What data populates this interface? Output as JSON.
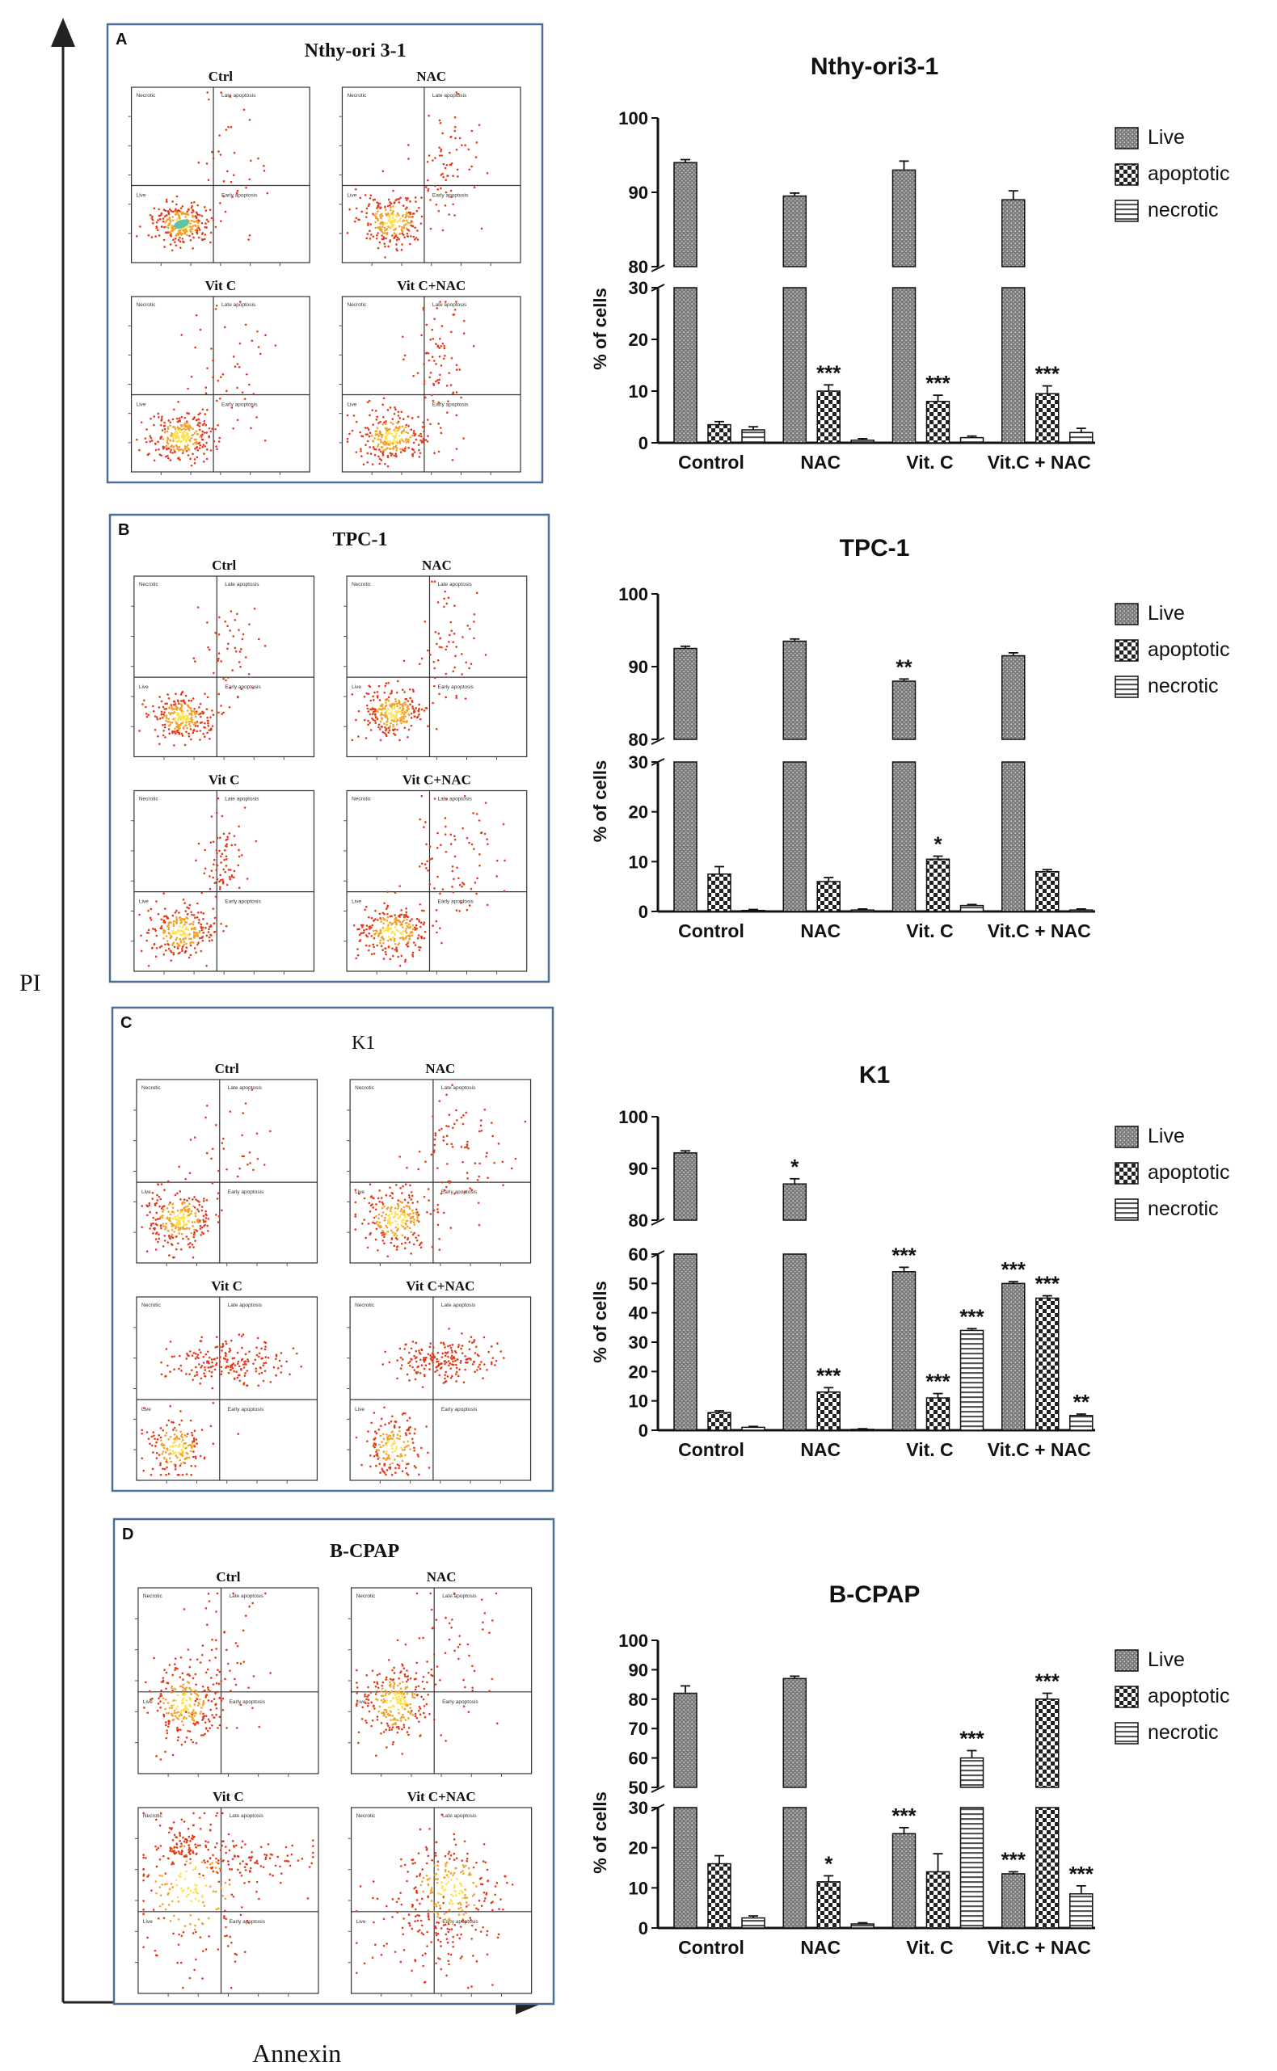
{
  "figure": {
    "y_axis_label": "PI",
    "x_axis_label": "Annexin"
  },
  "panels": [
    {
      "letter": "A",
      "cell_line": "Nthy-ori 3-1",
      "scatter": {
        "titles": [
          "Ctrl",
          "NAC",
          "Vit C",
          "Vit C+NAC"
        ],
        "quadrant_labels": [
          "Necrotic",
          "Late apoptosis",
          "Live",
          "Early apoptosis"
        ]
      }
    },
    {
      "letter": "B",
      "cell_line": "TPC-1",
      "scatter": {
        "titles": [
          "Ctrl",
          "NAC",
          "Vit C",
          "Vit C+NAC"
        ],
        "quadrant_labels": [
          "Necrotic",
          "Late apoptosis",
          "Live",
          "Early apoptosis"
        ]
      }
    },
    {
      "letter": "C",
      "cell_line": "K1",
      "scatter": {
        "titles": [
          "Ctrl",
          "NAC",
          "Vit C",
          "Vit C+NAC"
        ],
        "quadrant_labels": [
          "Necrotic",
          "Late apoptosis",
          "Live",
          "Early apoptosis"
        ]
      }
    },
    {
      "letter": "D",
      "cell_line": "B-CPAP",
      "scatter": {
        "titles": [
          "Ctrl",
          "NAC",
          "Vit C",
          "Vit C+NAC"
        ],
        "quadrant_labels": [
          "Necrotic",
          "Late apoptosis",
          "Live",
          "Early apoptosis"
        ]
      }
    }
  ],
  "colors": {
    "dot_red": "#e23b1c",
    "dot_orange": "#f2a12a",
    "dot_yellow": "#ffe04a",
    "dot_core": "#5ec3a8",
    "frame_blue": "#4a6e96",
    "bar_fill": "#8a8a8a"
  },
  "chart_data": [
    {
      "type": "bar",
      "title": "Nthy-ori3-1",
      "ylabel": "% of cells",
      "categories": [
        "Control",
        "NAC",
        "Vit. C",
        "Vit.C + NAC"
      ],
      "legend": [
        "Live",
        "apoptotic",
        "necrotic"
      ],
      "broken_axis": {
        "lower": [
          0,
          30
        ],
        "upper": [
          80,
          100
        ]
      },
      "lower_ticks": [
        0,
        10,
        20,
        30
      ],
      "upper_ticks": [
        80,
        90,
        100
      ],
      "series": [
        {
          "name": "Live",
          "values": [
            94,
            89.5,
            93,
            89
          ],
          "errors": [
            0.4,
            0.4,
            1.2,
            1.2
          ],
          "sig": [
            "",
            "",
            "",
            ""
          ]
        },
        {
          "name": "apoptotic",
          "values": [
            3.5,
            10,
            8,
            9.5
          ],
          "errors": [
            0.6,
            1.2,
            1.2,
            1.5
          ],
          "sig": [
            "",
            "***",
            "***",
            "***"
          ]
        },
        {
          "name": "necrotic",
          "values": [
            2.5,
            0.5,
            1,
            2
          ],
          "errors": [
            0.6,
            0.3,
            0.3,
            0.8
          ],
          "sig": [
            "",
            "",
            "",
            ""
          ]
        }
      ]
    },
    {
      "type": "bar",
      "title": "TPC-1",
      "ylabel": "% of cells",
      "categories": [
        "Control",
        "NAC",
        "Vit. C",
        "Vit.C + NAC"
      ],
      "legend": [
        "Live",
        "apoptotic",
        "necrotic"
      ],
      "broken_axis": {
        "lower": [
          0,
          30
        ],
        "upper": [
          80,
          100
        ]
      },
      "lower_ticks": [
        0,
        10,
        20,
        30
      ],
      "upper_ticks": [
        80,
        90,
        100
      ],
      "series": [
        {
          "name": "Live",
          "values": [
            92.5,
            93.5,
            88,
            91.5
          ],
          "errors": [
            0.3,
            0.3,
            0.3,
            0.4
          ],
          "sig": [
            "",
            "",
            "**",
            ""
          ]
        },
        {
          "name": "apoptotic",
          "values": [
            7.5,
            6,
            10.5,
            8
          ],
          "errors": [
            1.5,
            0.8,
            0.6,
            0.4
          ],
          "sig": [
            "",
            "",
            "*",
            ""
          ]
        },
        {
          "name": "necrotic",
          "values": [
            0.2,
            0.3,
            1.2,
            0.3
          ],
          "errors": [
            0.2,
            0.2,
            0.2,
            0.2
          ],
          "sig": [
            "",
            "",
            "",
            ""
          ]
        }
      ]
    },
    {
      "type": "bar",
      "title": "K1",
      "ylabel": "% of cells",
      "categories": [
        "Control",
        "NAC",
        "Vit. C",
        "Vit.C + NAC"
      ],
      "legend": [
        "Live",
        "apoptotic",
        "necrotic"
      ],
      "broken_axis": {
        "lower": [
          0,
          60
        ],
        "upper": [
          80,
          100
        ]
      },
      "lower_ticks": [
        0,
        10,
        20,
        30,
        40,
        50,
        60
      ],
      "upper_ticks": [
        80,
        90,
        100
      ],
      "series": [
        {
          "name": "Live",
          "values": [
            93,
            87,
            54,
            50
          ],
          "errors": [
            0.4,
            1,
            1.5,
            0.6
          ],
          "sig": [
            "",
            "*",
            "***",
            "***"
          ]
        },
        {
          "name": "apoptotic",
          "values": [
            6,
            13,
            11,
            45
          ],
          "errors": [
            0.6,
            1.5,
            1.5,
            0.8
          ],
          "sig": [
            "",
            "***",
            "***",
            "***"
          ]
        },
        {
          "name": "necrotic",
          "values": [
            1,
            0.3,
            34,
            5
          ],
          "errors": [
            0.3,
            0.2,
            0.6,
            0.5
          ],
          "sig": [
            "",
            "",
            "***",
            "**"
          ]
        }
      ]
    },
    {
      "type": "bar",
      "title": "B-CPAP",
      "ylabel": "% of cells",
      "categories": [
        "Control",
        "NAC",
        "Vit. C",
        "Vit.C + NAC"
      ],
      "legend": [
        "Live",
        "apoptotic",
        "necrotic"
      ],
      "broken_axis": {
        "lower": [
          0,
          30
        ],
        "upper": [
          50,
          100
        ]
      },
      "lower_ticks": [
        0,
        10,
        20,
        30
      ],
      "upper_ticks": [
        50,
        60,
        70,
        80,
        90,
        100
      ],
      "series": [
        {
          "name": "Live",
          "values": [
            82,
            87,
            23.5,
            13.5
          ],
          "errors": [
            2.5,
            0.8,
            1.5,
            0.5
          ],
          "sig": [
            "",
            "",
            "***",
            "***"
          ]
        },
        {
          "name": "apoptotic",
          "values": [
            16,
            11.5,
            14,
            80
          ],
          "errors": [
            2,
            1.5,
            4.5,
            2
          ],
          "sig": [
            "",
            "*",
            "",
            "***"
          ]
        },
        {
          "name": "necrotic",
          "values": [
            2.5,
            1,
            60,
            8.5
          ],
          "errors": [
            0.5,
            0.3,
            2.5,
            2
          ],
          "sig": [
            "",
            "",
            "***",
            "***"
          ]
        }
      ]
    }
  ]
}
